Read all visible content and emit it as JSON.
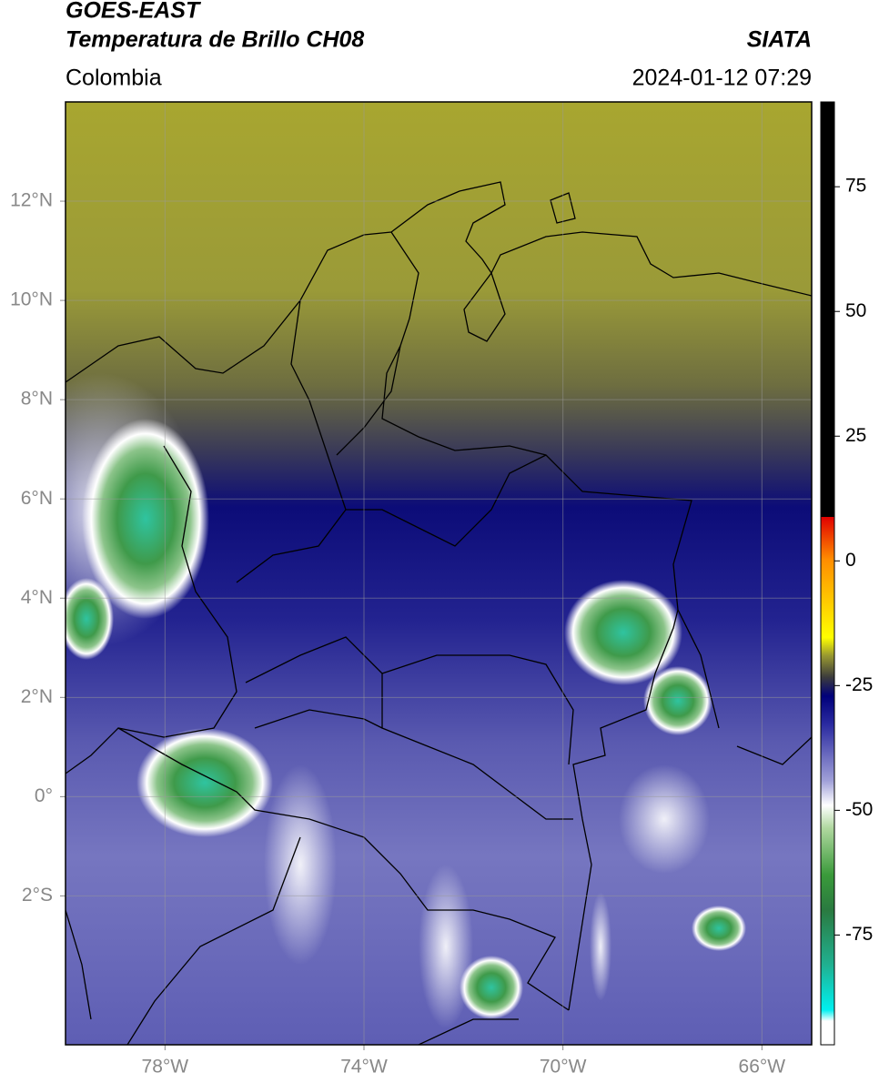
{
  "map": {
    "title": "GOES-EAST",
    "subtitle": "Temperatura de Brillo CH08",
    "source": "SIATA",
    "region": "Colombia",
    "datetime": "2024-01-12 07:29",
    "xlim": [
      -80,
      -65
    ],
    "ylim": [
      -5,
      14
    ],
    "xticks": [
      {
        "value": -78,
        "label": "78°W"
      },
      {
        "value": -74,
        "label": "74°W"
      },
      {
        "value": -70,
        "label": "70°W"
      },
      {
        "value": -66,
        "label": "66°W"
      }
    ],
    "yticks": [
      {
        "value": 12,
        "label": "12°N"
      },
      {
        "value": 10,
        "label": "10°N"
      },
      {
        "value": 8,
        "label": "8°N"
      },
      {
        "value": 6,
        "label": "6°N"
      },
      {
        "value": 4,
        "label": "4°N"
      },
      {
        "value": 2,
        "label": "2°N"
      },
      {
        "value": 0,
        "label": "0°"
      },
      {
        "value": -2,
        "label": "2°S"
      }
    ],
    "grid": true,
    "colorbar": {
      "lim": [
        -97,
        92
      ],
      "ticks": [
        75,
        50,
        25,
        0,
        -25,
        -50,
        -75
      ]
    }
  }
}
